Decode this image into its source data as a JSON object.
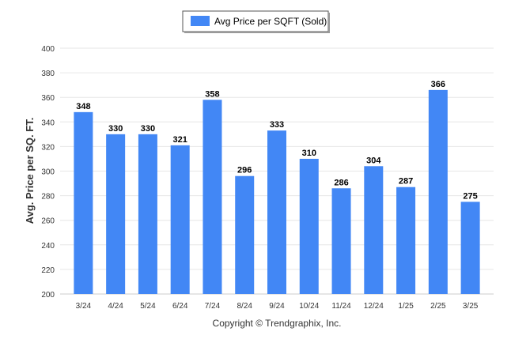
{
  "chart_data": {
    "type": "bar",
    "categories": [
      "3/24",
      "4/24",
      "5/24",
      "6/24",
      "7/24",
      "8/24",
      "9/24",
      "10/24",
      "11/24",
      "12/24",
      "1/25",
      "2/25",
      "3/25"
    ],
    "series": [
      {
        "name": "Avg Price per SQFT (Sold)",
        "values": [
          348,
          330,
          330,
          321,
          358,
          296,
          333,
          310,
          286,
          304,
          287,
          366,
          275
        ],
        "color": "#4287F5"
      }
    ],
    "title": "",
    "xlabel": "",
    "ylabel": "Avg. Price per SQ. FT.",
    "ylim": [
      200,
      400
    ],
    "yticks": [
      200,
      220,
      240,
      260,
      280,
      300,
      320,
      340,
      360,
      380,
      400
    ],
    "grid": true,
    "legend_position": "top-center",
    "data_labels": true
  },
  "footer": {
    "copyright": "Copyright © Trendgraphix, Inc."
  }
}
